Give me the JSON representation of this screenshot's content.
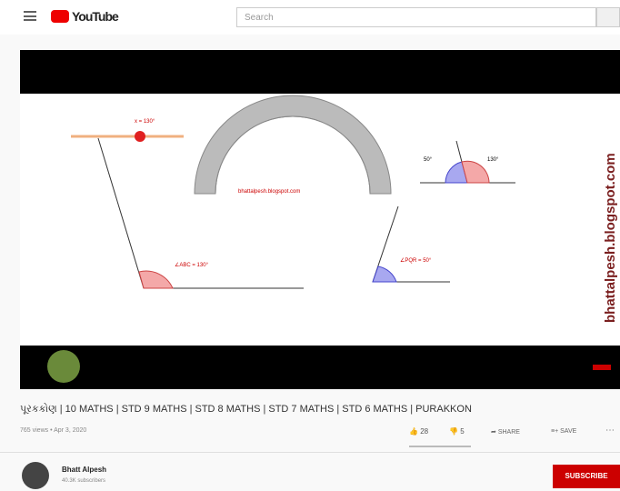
{
  "header": {
    "logo": "YouTube",
    "search_placeholder": "Search"
  },
  "video": {
    "watermark": "bhattalpesh.blogspot.com",
    "protractor_label": "bhattalpesh.blogspot.com",
    "slider_label": "x = 130°",
    "angle_left": "∠ABC = 130°",
    "angle_right": "∠PQR = 50°",
    "angle_small_1": "50°",
    "angle_small_2": "130°"
  },
  "info": {
    "title": "પૂરકકોણ | 10 MATHS | STD 9 MATHS | STD 8 MATHS | STD 7 MATHS | STD 6 MATHS | PURAKKON",
    "meta": "765 views • Apr 3, 2020",
    "likes": "28",
    "dislikes": "5",
    "share": "SHARE",
    "save": "SAVE"
  },
  "channel": {
    "name": "Bhatt Alpesh",
    "subscribers": "40.3K subscribers",
    "subscribe": "SUBSCRIBE"
  }
}
